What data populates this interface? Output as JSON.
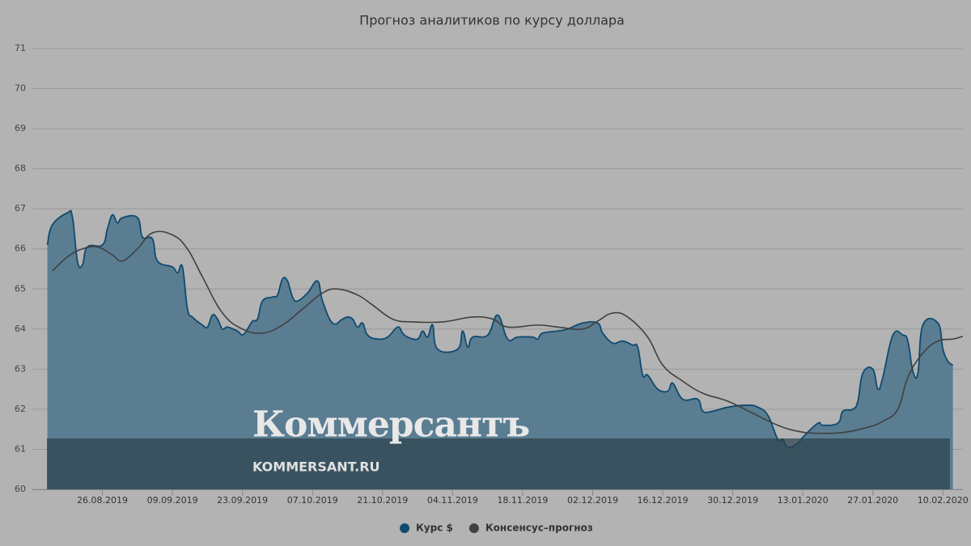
{
  "chart_data": {
    "type": "line",
    "title": "Прогноз аналитиков по курсу доллара",
    "ylim": [
      60,
      71
    ],
    "yticks": [
      60,
      61,
      62,
      63,
      64,
      65,
      66,
      67,
      68,
      69,
      70,
      71
    ],
    "grid": true,
    "xlim": [
      "12.08.2019",
      "14.02.2020"
    ],
    "xticks": [
      "26.08.2019",
      "09.09.2019",
      "23.09.2019",
      "07.10.2019",
      "21.10.2019",
      "04.11.2019",
      "18.11.2019",
      "02.12.2019",
      "16.12.2019",
      "30.12.2019",
      "13.01.2020",
      "27.01.2020",
      "10.02.2020"
    ],
    "legend": "bottom",
    "watermark": {
      "logo": "Коммерсантъ",
      "site": "KOMMERSANT.RU"
    },
    "series": [
      {
        "name": "Курс $",
        "color": "#0f4a70",
        "fill": "#5a7d92",
        "area": true,
        "x": [
          "15.08.2019",
          "16.08.2019",
          "19.08.2019",
          "20.08.2019",
          "21.08.2019",
          "22.08.2019",
          "23.08.2019",
          "26.08.2019",
          "27.08.2019",
          "28.08.2019",
          "29.08.2019",
          "30.08.2019",
          "02.09.2019",
          "03.09.2019",
          "05.09.2019",
          "06.09.2019",
          "09.09.2019",
          "10.09.2019",
          "11.09.2019",
          "12.09.2019",
          "13.09.2019",
          "15.09.2019",
          "16.09.2019",
          "17.09.2019",
          "18.09.2019",
          "19.09.2019",
          "20.09.2019",
          "22.09.2019",
          "23.09.2019",
          "24.09.2019",
          "25.09.2019",
          "26.09.2019",
          "27.09.2019",
          "29.09.2019",
          "30.09.2019",
          "01.10.2019",
          "02.10.2019",
          "03.10.2019",
          "04.10.2019",
          "06.10.2019",
          "08.10.2019",
          "09.10.2019",
          "11.10.2019",
          "13.10.2019",
          "14.10.2019",
          "15.10.2019",
          "16.10.2019",
          "17.10.2019",
          "18.10.2019",
          "20.10.2019",
          "22.10.2019",
          "24.10.2019",
          "25.10.2019",
          "26.10.2019",
          "28.10.2019",
          "29.10.2019",
          "30.10.2019",
          "31.10.2019",
          "01.11.2019",
          "05.11.2019",
          "06.11.2019",
          "07.11.2019",
          "08.11.2019",
          "11.11.2019",
          "13.11.2019",
          "15.11.2019",
          "17.11.2019",
          "20.11.2019",
          "21.11.2019",
          "22.11.2019",
          "25.11.2019",
          "27.11.2019",
          "30.11.2019",
          "03.12.2019",
          "04.12.2019",
          "06.12.2019",
          "08.12.2019",
          "10.12.2019",
          "11.12.2019",
          "12.12.2019",
          "13.12.2019",
          "15.12.2019",
          "17.12.2019",
          "18.12.2019",
          "20.12.2019",
          "23.12.2019",
          "24.12.2019",
          "26.12.2019",
          "29.12.2019",
          "02.01.2020",
          "04.01.2020",
          "06.01.2020",
          "08.01.2020",
          "09.01.2020",
          "10.01.2020",
          "12.01.2020",
          "13.01.2020",
          "16.01.2020",
          "17.01.2020",
          "20.01.2020",
          "21.01.2020",
          "23.01.2020",
          "24.01.2020",
          "25.01.2020",
          "27.01.2020",
          "28.01.2020",
          "29.01.2020",
          "31.01.2020",
          "02.02.2020",
          "03.02.2020",
          "04.02.2020",
          "05.02.2020",
          "06.02.2020",
          "09.02.2020",
          "10.02.2020",
          "11.02.2020",
          "12.02.2020"
        ],
        "values": [
          66.1,
          66.6,
          66.9,
          66.8,
          65.7,
          65.6,
          66.05,
          66.1,
          66.5,
          66.85,
          66.65,
          66.78,
          66.78,
          66.3,
          66.25,
          65.7,
          65.55,
          65.4,
          65.55,
          64.5,
          64.3,
          64.1,
          64.05,
          64.35,
          64.25,
          64.0,
          64.05,
          63.95,
          63.85,
          64.0,
          64.2,
          64.25,
          64.7,
          64.8,
          64.85,
          65.25,
          65.2,
          64.8,
          64.7,
          64.9,
          65.2,
          64.7,
          64.15,
          64.25,
          64.3,
          64.25,
          64.05,
          64.15,
          63.85,
          63.75,
          63.8,
          64.05,
          63.9,
          63.8,
          63.75,
          63.95,
          63.8,
          64.1,
          63.5,
          63.5,
          63.95,
          63.55,
          63.8,
          63.85,
          64.35,
          63.75,
          63.8,
          63.8,
          63.75,
          63.9,
          63.95,
          64.0,
          64.15,
          64.15,
          63.9,
          63.65,
          63.7,
          63.6,
          63.55,
          62.85,
          62.85,
          62.5,
          62.45,
          62.65,
          62.25,
          62.25,
          61.95,
          61.95,
          62.05,
          62.1,
          62.05,
          61.85,
          61.25,
          61.25,
          61.05,
          61.15,
          61.3,
          61.65,
          61.6,
          61.65,
          61.95,
          62.0,
          62.2,
          62.9,
          63.0,
          62.5,
          62.8,
          63.85,
          63.85,
          63.7,
          62.95,
          62.9,
          64.1,
          64.15,
          63.5,
          63.2,
          63.1
        ]
      },
      {
        "name": "Консенсус–прогноз",
        "color": "#404040",
        "x": [
          "16.08.2019",
          "19.08.2019",
          "22.08.2019",
          "25.08.2019",
          "28.08.2019",
          "30.08.2019",
          "02.09.2019",
          "05.09.2019",
          "09.09.2019",
          "12.09.2019",
          "15.09.2019",
          "19.09.2019",
          "23.09.2019",
          "27.09.2019",
          "01.10.2019",
          "05.10.2019",
          "09.10.2019",
          "12.10.2019",
          "16.10.2019",
          "19.10.2019",
          "23.10.2019",
          "27.10.2019",
          "02.11.2019",
          "08.11.2019",
          "12.11.2019",
          "15.11.2019",
          "21.11.2019",
          "25.11.2019",
          "30.11.2019",
          "03.12.2019",
          "06.12.2019",
          "09.12.2019",
          "13.12.2019",
          "16.12.2019",
          "20.12.2019",
          "24.12.2019",
          "29.12.2019",
          "03.01.2020",
          "08.01.2020",
          "12.01.2020",
          "16.01.2020",
          "21.01.2020",
          "26.01.2020",
          "29.01.2020",
          "01.02.2020",
          "03.02.2020",
          "06.02.2020",
          "09.02.2020",
          "12.02.2020",
          "14.02.2020"
        ],
        "values": [
          65.45,
          65.8,
          66.0,
          66.05,
          65.85,
          65.7,
          66.0,
          66.4,
          66.35,
          66.0,
          65.3,
          64.4,
          64.0,
          63.9,
          64.1,
          64.5,
          64.9,
          65.0,
          64.85,
          64.6,
          64.25,
          64.18,
          64.18,
          64.3,
          64.25,
          64.05,
          64.1,
          64.05,
          64.0,
          64.2,
          64.4,
          64.3,
          63.8,
          63.1,
          62.7,
          62.4,
          62.2,
          61.9,
          61.6,
          61.45,
          61.4,
          61.42,
          61.55,
          61.7,
          62.0,
          62.8,
          63.4,
          63.7,
          63.75,
          63.82
        ]
      }
    ]
  }
}
